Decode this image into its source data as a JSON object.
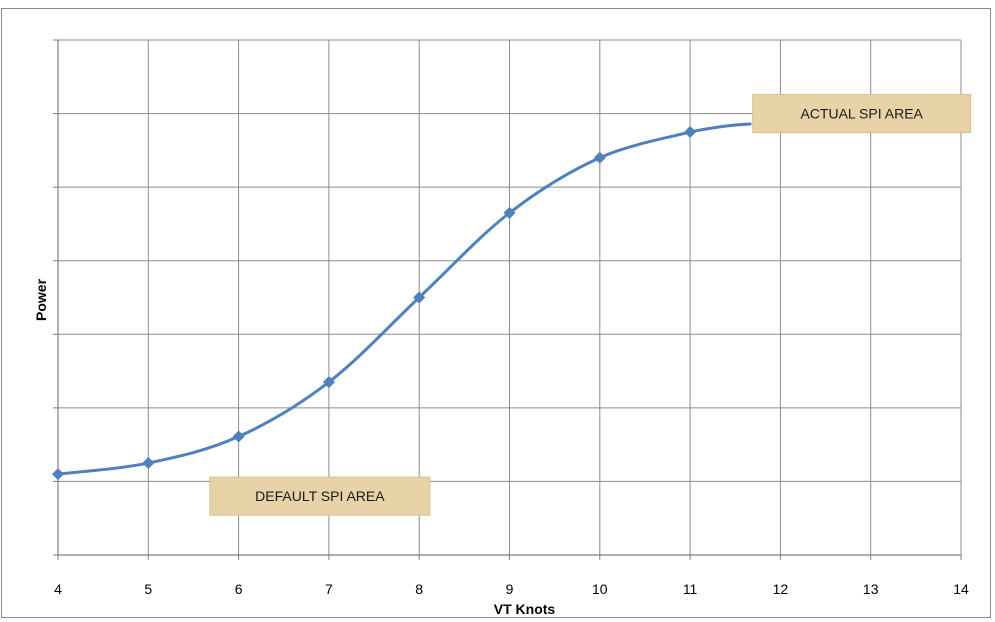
{
  "chart_data": {
    "type": "line",
    "title": "",
    "xlabel": "VT Knots",
    "ylabel": "Power",
    "xlim": [
      4,
      14
    ],
    "ylim": [
      0,
      7
    ],
    "x_ticks": [
      "4",
      "5",
      "6",
      "7",
      "8",
      "9",
      "10",
      "11",
      "12",
      "13",
      "14"
    ],
    "y_tick_labels_shown": false,
    "grid": true,
    "legend": "none",
    "smooth": true,
    "series": [
      {
        "x": [
          4,
          5,
          6,
          7,
          8,
          9,
          10,
          11,
          14
        ],
        "y": [
          1.1,
          1.25,
          1.61,
          2.35,
          3.5,
          4.65,
          5.4,
          5.75,
          6.0
        ],
        "color": "#4f81bd"
      }
    ],
    "annotations": [
      {
        "text": "DEFAULT SPI AREA",
        "x": 6.9,
        "y": 0.8
      },
      {
        "text": "ACTUAL SPI AREA",
        "x": 12.9,
        "y": 6.0
      }
    ],
    "annotation_fill": "#e8d3a8"
  }
}
